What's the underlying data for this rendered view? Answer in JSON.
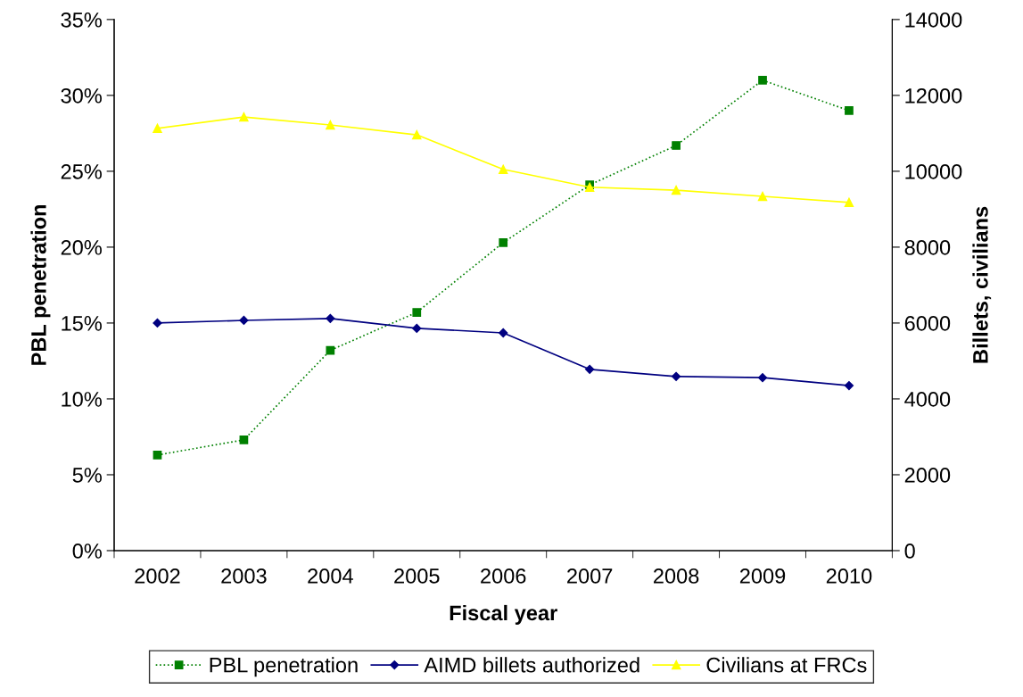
{
  "chart_data": {
    "type": "line",
    "xlabel": "Fiscal year",
    "ylabel": "PBL penetration",
    "y2label": "Billets, civilians",
    "categories": [
      "2002",
      "2003",
      "2004",
      "2005",
      "2006",
      "2007",
      "2008",
      "2009",
      "2010"
    ],
    "series": [
      {
        "name": "PBL penetration",
        "color": "#008000",
        "marker": "square",
        "line_style": "dotted",
        "values": [
          6.3,
          7.3,
          13.2,
          15.7,
          20.3,
          24.1,
          26.7,
          31.0,
          29.0
        ]
      },
      {
        "name": "AIMD billets authorized",
        "color": "#000080",
        "marker": "diamond",
        "line_style": "solid",
        "axis": "y2",
        "values": [
          6000,
          6070,
          6120,
          5860,
          5740,
          4780,
          4590,
          4560,
          4350
        ]
      },
      {
        "name": "Civilians at FRCs",
        "color": "#ffff00",
        "marker": "triangle",
        "line_style": "solid",
        "axis": "y2",
        "values": [
          11130,
          11430,
          11220,
          10960,
          10050,
          9580,
          9500,
          9340,
          9180
        ]
      }
    ],
    "ylim": [
      0,
      35
    ],
    "yticks": [
      {
        "value": 0,
        "label": "0%"
      },
      {
        "value": 5,
        "label": "5%"
      },
      {
        "value": 10,
        "label": "10%"
      },
      {
        "value": 15,
        "label": "15%"
      },
      {
        "value": 20,
        "label": "20%"
      },
      {
        "value": 25,
        "label": "25%"
      },
      {
        "value": 30,
        "label": "30%"
      },
      {
        "value": 35,
        "label": "35%"
      }
    ],
    "y2lim": [
      0,
      14000
    ],
    "y2ticks": [
      0,
      2000,
      4000,
      6000,
      8000,
      10000,
      12000,
      14000
    ],
    "grid": false,
    "legend": "bottom"
  }
}
